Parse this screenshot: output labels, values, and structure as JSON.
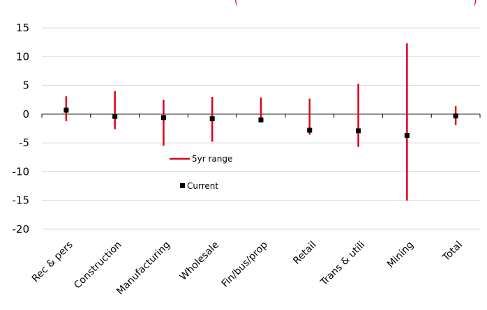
{
  "colors": {
    "range": "#e2001a",
    "current": "#000000",
    "grid": "#d9d9d9",
    "axis": "#000000"
  },
  "title_fragment": {
    "open": "(",
    "close": ")"
  },
  "chart_data": {
    "type": "range-dot",
    "categories": [
      "Rec & pers",
      "Construction",
      "Manufacturing",
      "Wholesale",
      "Fin/bus/prop",
      "Retail",
      "Trans & utili",
      "Mining",
      "Total"
    ],
    "series": [
      {
        "name": "5yr range",
        "kind": "range",
        "low": [
          -1.2,
          -2.6,
          -5.5,
          -4.8,
          -1.1,
          -3.6,
          -5.7,
          -15.0,
          -1.9
        ],
        "high": [
          3.1,
          4.0,
          2.5,
          3.0,
          2.9,
          2.7,
          5.3,
          12.3,
          1.4
        ]
      },
      {
        "name": "Current",
        "kind": "point",
        "values": [
          0.7,
          -0.4,
          -0.6,
          -0.8,
          -1.0,
          -2.8,
          -2.9,
          -3.7,
          -0.3
        ]
      }
    ],
    "ylim": [
      -20,
      15
    ],
    "yticks": [
      15,
      10,
      5,
      0,
      -5,
      -10,
      -15,
      -20
    ],
    "grid": true,
    "legend_position": "center-left"
  }
}
